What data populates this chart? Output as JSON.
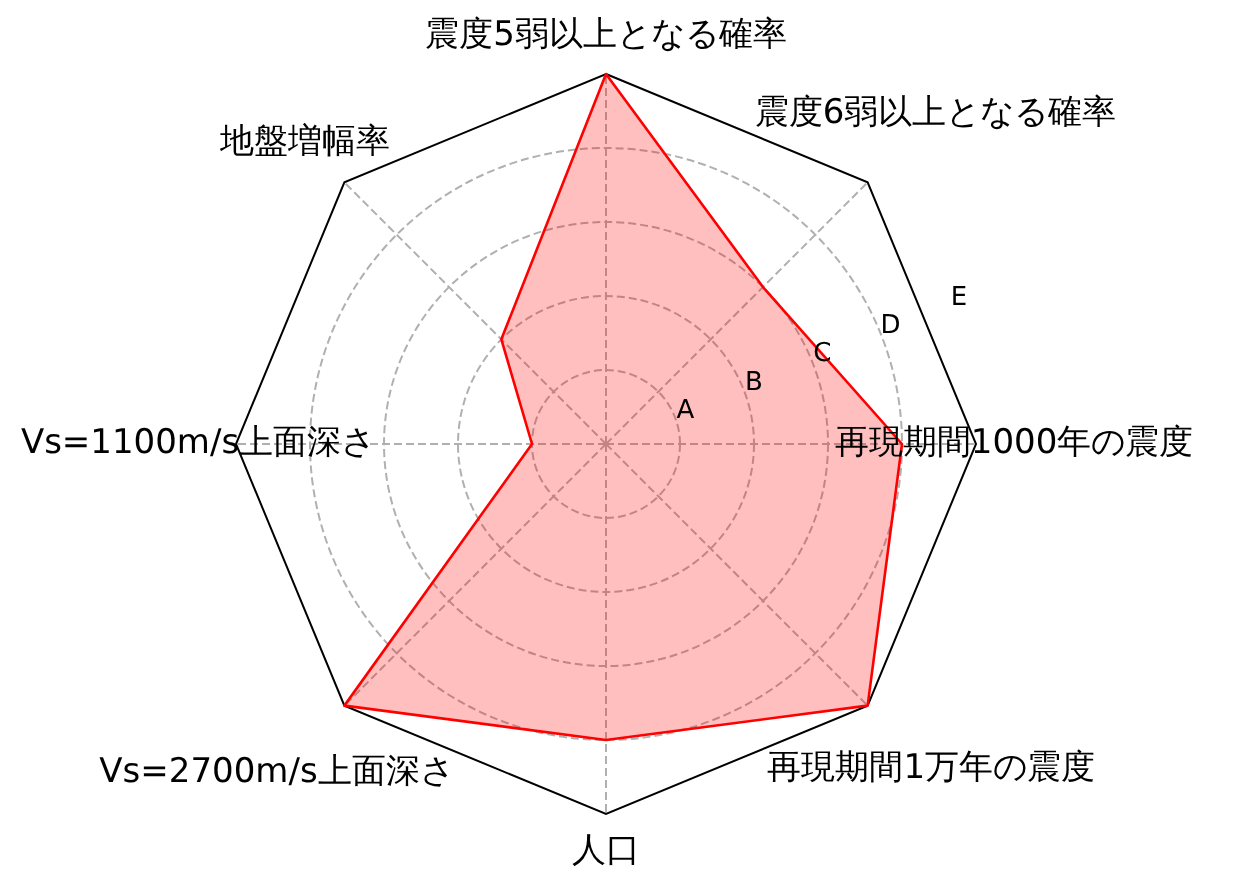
{
  "chart_data": {
    "type": "radar",
    "categories": [
      "震度5弱以上となる確率",
      "震度6弱以上となる確率",
      "再現期間1000年の震度",
      "再現期間1万年の震度",
      "人口",
      "Vs=2700m/s上面深さ",
      "Vs=1100m/s上面深さ",
      "地盤増幅率"
    ],
    "series": [
      {
        "color": "#ff0000",
        "values": [
          5,
          3,
          4,
          5,
          4,
          5,
          1,
          2
        ]
      }
    ],
    "ylim": [
      0,
      5
    ],
    "yticks": [
      {
        "value": 1,
        "label": "A"
      },
      {
        "value": 2,
        "label": "B"
      },
      {
        "value": 3,
        "label": "C"
      },
      {
        "value": 4,
        "label": "D"
      },
      {
        "value": 5,
        "label": "E"
      }
    ],
    "grid": true,
    "marker": "none"
  }
}
